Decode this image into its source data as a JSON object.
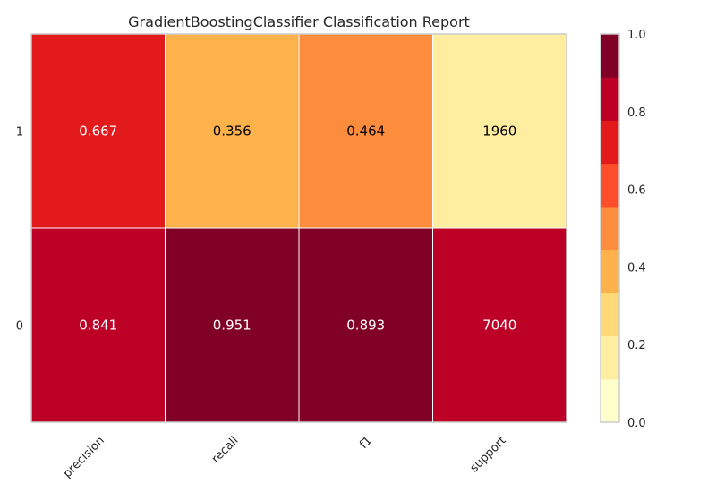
{
  "chart_data": {
    "type": "heatmap",
    "title": "GradientBoostingClassifier Classification Report",
    "xlabel": "",
    "ylabel": "",
    "columns": [
      "precision",
      "recall",
      "f1",
      "support"
    ],
    "rows": [
      "1",
      "0"
    ],
    "values": [
      [
        0.667,
        0.356,
        0.464,
        1960
      ],
      [
        0.841,
        0.951,
        0.893,
        7040
      ]
    ],
    "cell_labels": [
      [
        "0.667",
        "0.356",
        "0.464",
        "1960"
      ],
      [
        "0.841",
        "0.951",
        "0.893",
        "7040"
      ]
    ],
    "color_values": [
      [
        0.667,
        0.356,
        0.464,
        0.218
      ],
      [
        0.841,
        0.951,
        0.893,
        0.782
      ]
    ],
    "colorbar": {
      "range": [
        0.0,
        1.0
      ],
      "ticks": [
        "0.0",
        "0.2",
        "0.4",
        "0.6",
        "0.8",
        "1.0"
      ],
      "bins": 9,
      "colors": [
        "#ffffcc",
        "#ffeda0",
        "#fed976",
        "#feb24c",
        "#fd8d3c",
        "#fc4e2a",
        "#e31a1c",
        "#bd0026",
        "#800026"
      ]
    },
    "grid": false
  }
}
